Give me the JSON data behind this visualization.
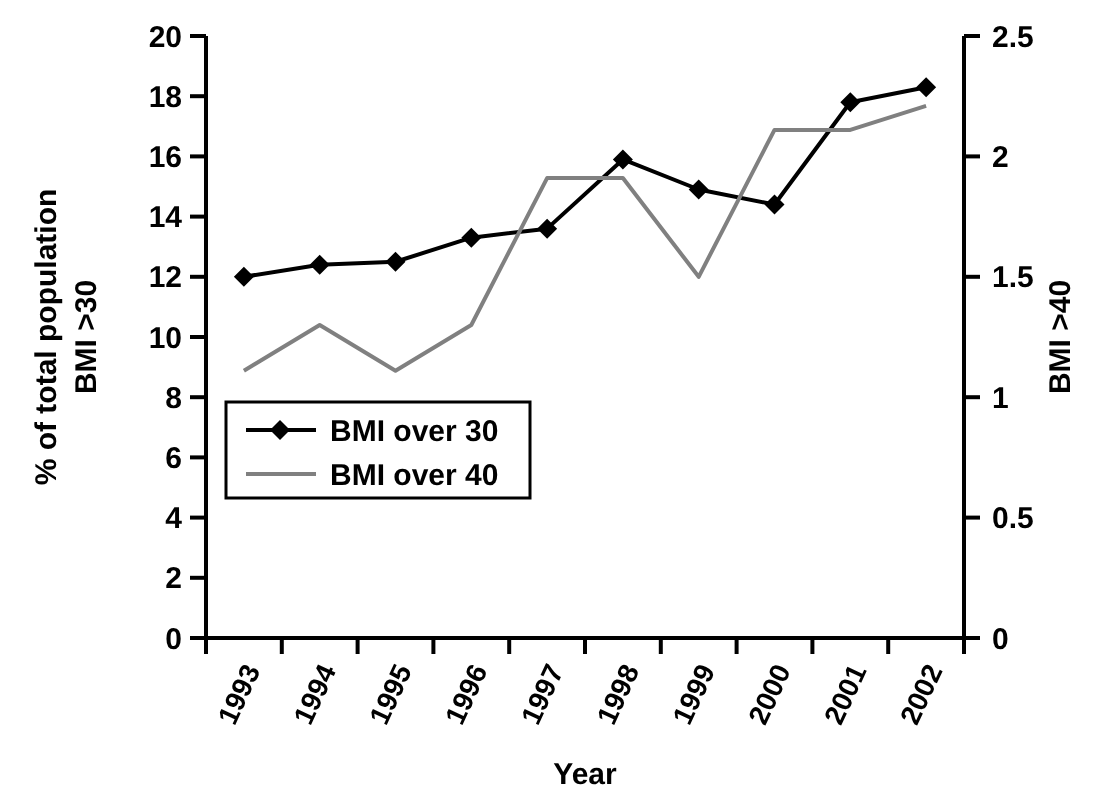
{
  "chart_data": {
    "type": "line",
    "xlabel": "Year",
    "ylabel": "% of total population\nBMI >30",
    "y2label": "BMI >40",
    "categories": [
      "1993",
      "1994",
      "1995",
      "1996",
      "1997",
      "1998",
      "1999",
      "2000",
      "2001",
      "2002"
    ],
    "series": [
      {
        "name": "BMI over 30",
        "color": "#000000",
        "marker": "diamond",
        "values": [
          12.0,
          12.4,
          12.5,
          13.3,
          13.6,
          15.9,
          14.9,
          14.4,
          17.8,
          18.3
        ]
      },
      {
        "name": "BMI over 40",
        "color": "#808080",
        "marker": "none",
        "axis": "y2",
        "values": [
          1.11,
          1.3,
          1.11,
          1.3,
          1.91,
          1.91,
          1.5,
          2.11,
          2.11,
          2.21
        ]
      }
    ],
    "ylim": [
      0,
      20
    ],
    "yticks": [
      0,
      2,
      4,
      6,
      8,
      10,
      12,
      14,
      16,
      18,
      20
    ],
    "y2lim": [
      0,
      2.5
    ],
    "y2ticks": [
      0,
      0.5,
      1,
      1.5,
      2,
      2.5
    ],
    "legend": "bottom left",
    "grid": false
  }
}
